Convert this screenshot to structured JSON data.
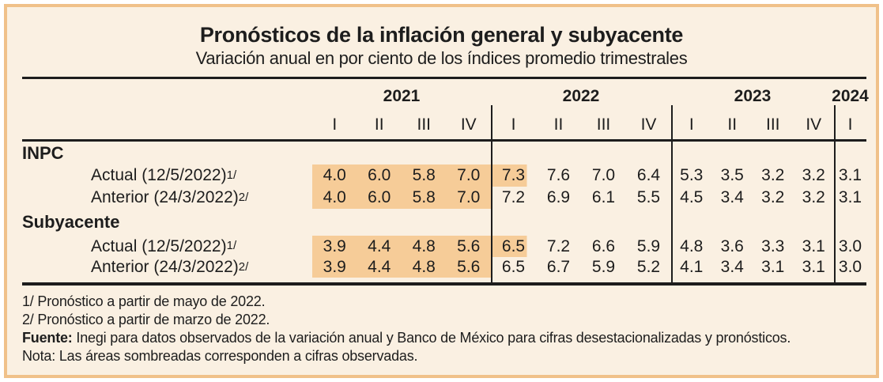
{
  "chart_data": {
    "type": "table",
    "title": "Pronósticos de la inflación general y subyacente",
    "subtitle": "Variación anual en por ciento de los índices promedio trimestrales",
    "years": [
      {
        "label": "2021",
        "quarters": [
          "I",
          "II",
          "III",
          "IV"
        ]
      },
      {
        "label": "2022",
        "quarters": [
          "I",
          "II",
          "III",
          "IV"
        ]
      },
      {
        "label": "2023",
        "quarters": [
          "I",
          "II",
          "III",
          "IV"
        ]
      },
      {
        "label": "2024",
        "quarters": [
          "I"
        ]
      }
    ],
    "sections": [
      {
        "name": "INPC",
        "rows": [
          {
            "label": "Actual (12/5/2022)",
            "footnote_mark": "1/",
            "values": [
              "4.0",
              "6.0",
              "5.8",
              "7.0",
              "7.3",
              "7.6",
              "7.0",
              "6.4",
              "5.3",
              "3.5",
              "3.2",
              "3.2",
              "3.1"
            ],
            "shaded_count": 5
          },
          {
            "label": "Anterior (24/3/2022)",
            "footnote_mark": "2/",
            "values": [
              "4.0",
              "6.0",
              "5.8",
              "7.0",
              "7.2",
              "6.9",
              "6.1",
              "5.5",
              "4.5",
              "3.4",
              "3.2",
              "3.2",
              "3.1"
            ],
            "shaded_count": 4
          }
        ]
      },
      {
        "name": "Subyacente",
        "rows": [
          {
            "label": "Actual (12/5/2022)",
            "footnote_mark": "1/",
            "values": [
              "3.9",
              "4.4",
              "4.8",
              "5.6",
              "6.5",
              "7.2",
              "6.6",
              "5.9",
              "4.8",
              "3.6",
              "3.3",
              "3.1",
              "3.0"
            ],
            "shaded_count": 5
          },
          {
            "label": "Anterior (24/3/2022)",
            "footnote_mark": "2/",
            "values": [
              "3.9",
              "4.4",
              "4.8",
              "5.6",
              "6.5",
              "6.7",
              "5.9",
              "5.2",
              "4.1",
              "3.4",
              "3.1",
              "3.1",
              "3.0"
            ],
            "shaded_count": 4
          }
        ]
      }
    ],
    "shading_meaning": "Las áreas sombreadas corresponden a cifras observadas."
  },
  "footnotes": [
    "1/ Pronóstico a partir de mayo de 2022.",
    "2/ Pronóstico a partir de marzo de 2022."
  ],
  "source": {
    "label": "Fuente:",
    "text": "Inegi para datos observados de la variación anual y Banco de México para cifras desestacionalizadas y pronósticos."
  },
  "note": {
    "label": "Nota:",
    "text": "Las áreas sombreadas corresponden a cifras observadas."
  },
  "colors": {
    "background": "#FAF0E2",
    "frame_border": "#F0C189",
    "shaded_cell": "#F6CC98",
    "text": "#1D1D1D"
  }
}
